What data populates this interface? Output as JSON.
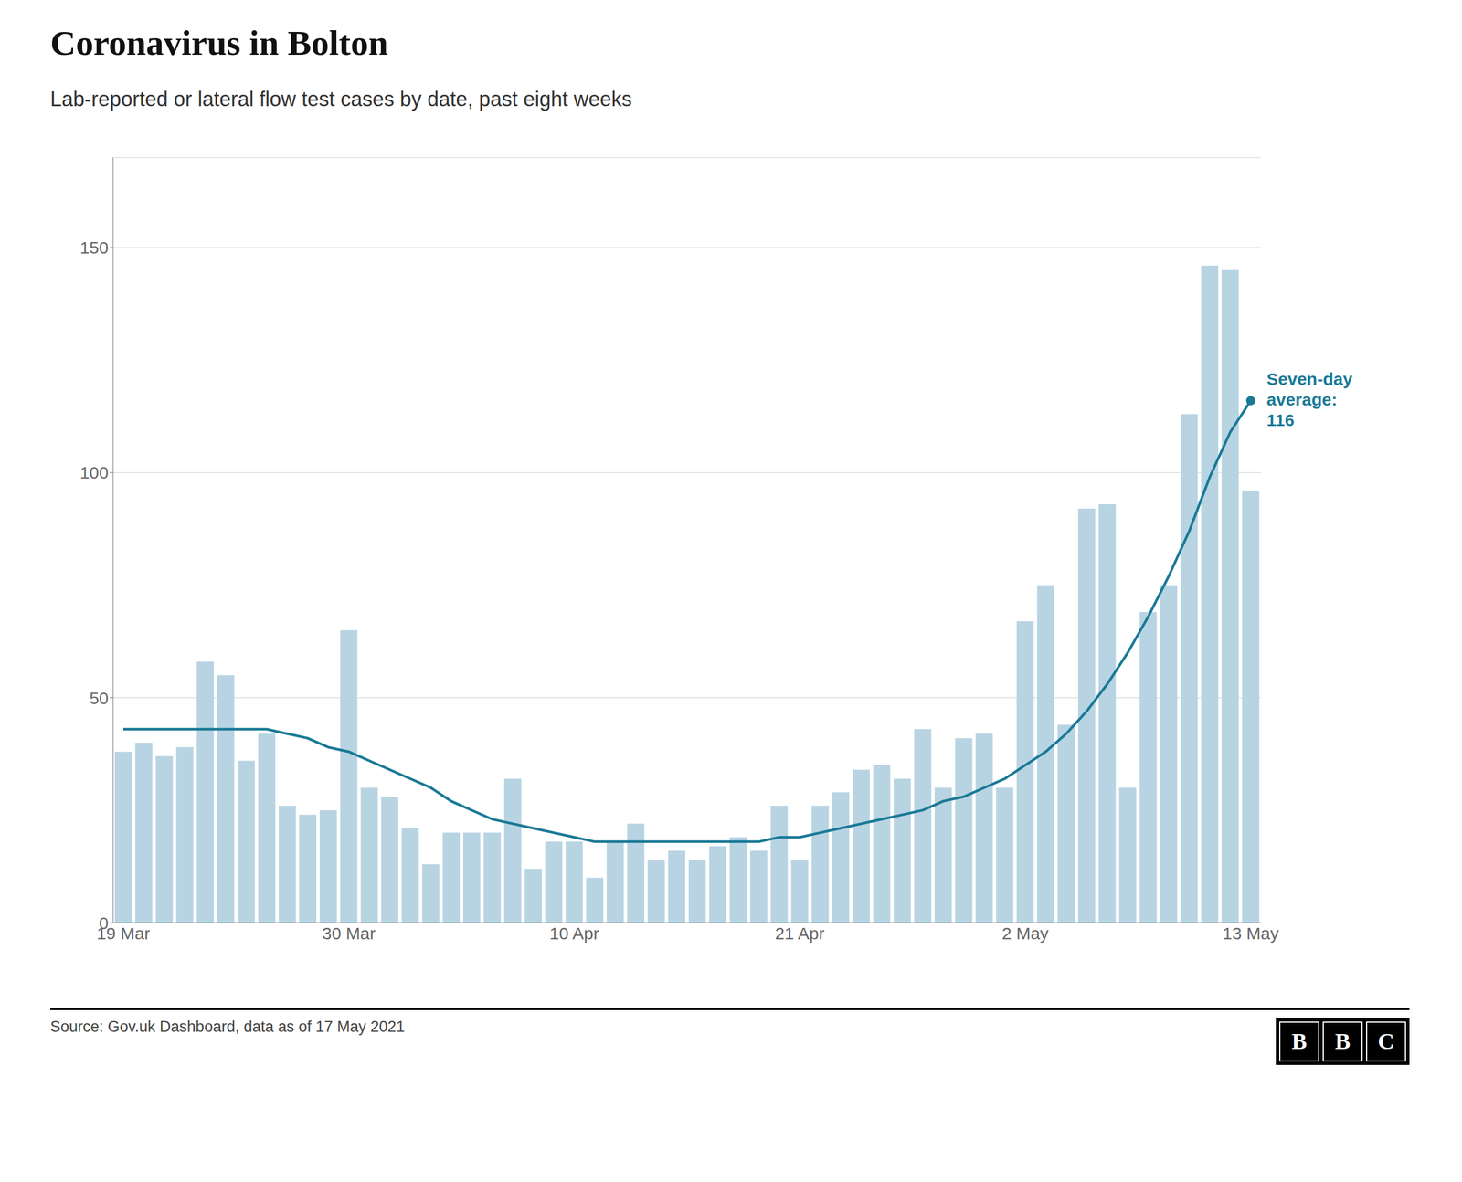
{
  "chart_data": {
    "type": "bar",
    "title": "Coronavirus in Bolton",
    "subtitle": "Lab-reported or lateral flow test cases by date, past eight weeks",
    "source": "Source: Gov.uk Dashboard, data as of 17 May 2021",
    "annotation": {
      "text": "Seven-day\naverage:\n116",
      "color": "#1a7a96"
    },
    "logo_text": "BBC",
    "categories": [
      "19 Mar",
      null,
      null,
      null,
      null,
      null,
      null,
      null,
      null,
      null,
      null,
      "30 Mar",
      null,
      null,
      null,
      null,
      null,
      null,
      null,
      null,
      null,
      null,
      "10 Apr",
      null,
      null,
      null,
      null,
      null,
      null,
      null,
      null,
      null,
      null,
      "21 Apr",
      null,
      null,
      null,
      null,
      null,
      null,
      null,
      null,
      null,
      null,
      "2 May",
      null,
      null,
      null,
      null,
      null,
      null,
      null,
      null,
      null,
      null,
      "13 May"
    ],
    "series": [
      {
        "type": "bar",
        "color": "#b8d4e3",
        "values": [
          38,
          40,
          37,
          39,
          58,
          55,
          36,
          42,
          26,
          24,
          25,
          65,
          30,
          28,
          21,
          13,
          20,
          20,
          20,
          32,
          12,
          18,
          18,
          10,
          18,
          22,
          14,
          16,
          14,
          17,
          19,
          16,
          26,
          14,
          26,
          29,
          34,
          35,
          32,
          43,
          30,
          41,
          42,
          30,
          67,
          75,
          44,
          92,
          93,
          30,
          69,
          75,
          113,
          146,
          145,
          96
        ]
      },
      {
        "type": "line",
        "color": "#1a7a96",
        "values": [
          43,
          43,
          43,
          43,
          43,
          43,
          43,
          43,
          42,
          41,
          39,
          38,
          36,
          34,
          32,
          30,
          27,
          25,
          23,
          22,
          21,
          20,
          19,
          18,
          18,
          18,
          18,
          18,
          18,
          18,
          18,
          18,
          19,
          19,
          20,
          21,
          22,
          23,
          24,
          25,
          27,
          28,
          30,
          32,
          35,
          38,
          42,
          47,
          53,
          60,
          68,
          77,
          87,
          99,
          109,
          116
        ]
      }
    ],
    "ylim": [
      0,
      170
    ],
    "yticks": [
      0,
      50,
      100,
      150
    ],
    "grid": true
  }
}
